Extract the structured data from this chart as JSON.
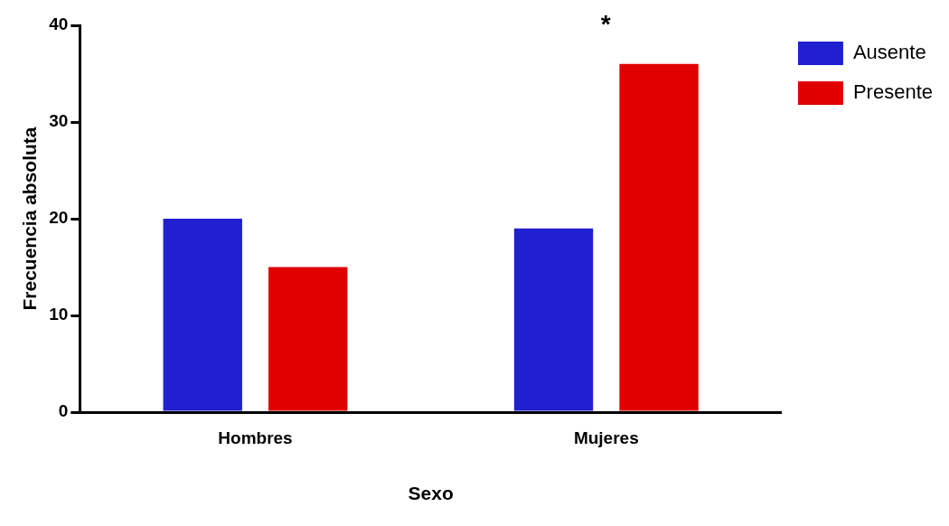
{
  "chart_data": {
    "type": "bar",
    "xlabel": "Sexo",
    "ylabel": "Frecuencia absoluta",
    "categories": [
      "Hombres",
      "Mujeres"
    ],
    "series": [
      {
        "name": "Ausente",
        "color": "#2020d0",
        "values": [
          20,
          19
        ]
      },
      {
        "name": "Presente",
        "color": "#e00000",
        "values": [
          15,
          36
        ]
      }
    ],
    "ylim": [
      0,
      40
    ],
    "yticks": [
      0,
      10,
      20,
      30,
      40
    ],
    "grid": false,
    "legend": "top right",
    "annotations": [
      "*"
    ]
  }
}
